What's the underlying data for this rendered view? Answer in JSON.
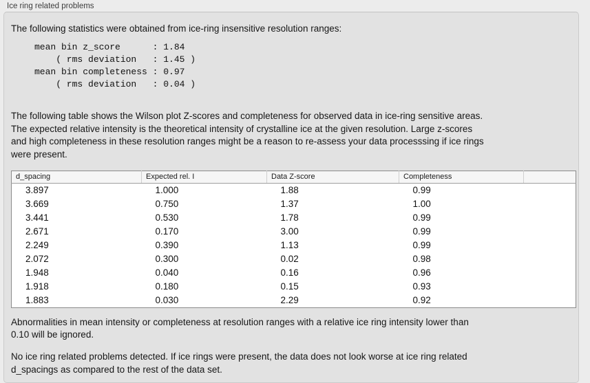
{
  "colors": {
    "page_bg": "#ececec",
    "panel_bg": "#e2e2e2",
    "panel_border": "#cbcbcb",
    "table_bg": "#ffffff",
    "table_border": "#8b8b8b",
    "table_header_bg": "#f6f6f6",
    "text": "#161616"
  },
  "groupbox": {
    "title": "Ice ring related problems"
  },
  "summary": {
    "intro": "The following statistics were obtained from ice-ring insensitive resolution ranges:",
    "stats": "mean bin z_score      : 1.84\n    ( rms deviation   : 1.45 )\nmean bin completeness : 0.97\n    ( rms deviation   : 0.04 )"
  },
  "description": "The following table shows the Wilson plot Z-scores and completeness for observed data in ice-ring sensitive areas.\nThe expected relative intensity is the theoretical intensity of crystalline ice at the given resolution. Large z-scores\nand high completeness in these resolution ranges might be a reason to re-assess your data processsing if ice rings\nwere present.",
  "table": {
    "columns": [
      "d_spacing",
      "Expected rel. I",
      "Data Z-score",
      "Completeness"
    ],
    "rows": [
      [
        "3.897",
        "1.000",
        "1.88",
        "0.99"
      ],
      [
        "3.669",
        "0.750",
        "1.37",
        "1.00"
      ],
      [
        "3.441",
        "0.530",
        "1.78",
        "0.99"
      ],
      [
        "2.671",
        "0.170",
        "3.00",
        "0.99"
      ],
      [
        "2.249",
        "0.390",
        "1.13",
        "0.99"
      ],
      [
        "2.072",
        "0.300",
        "0.02",
        "0.98"
      ],
      [
        "1.948",
        "0.040",
        "0.16",
        "0.96"
      ],
      [
        "1.918",
        "0.180",
        "0.15",
        "0.93"
      ],
      [
        "1.883",
        "0.030",
        "2.29",
        "0.92"
      ]
    ]
  },
  "notes": {
    "ignore_rule": "Abnormalities in mean intensity or completeness at resolution ranges with a relative ice ring intensity lower than\n0.10 will be ignored.",
    "conclusion": "No ice ring related problems detected. If ice rings were present, the data does not look worse at ice ring related\nd_spacings as compared to the rest of the data set."
  }
}
